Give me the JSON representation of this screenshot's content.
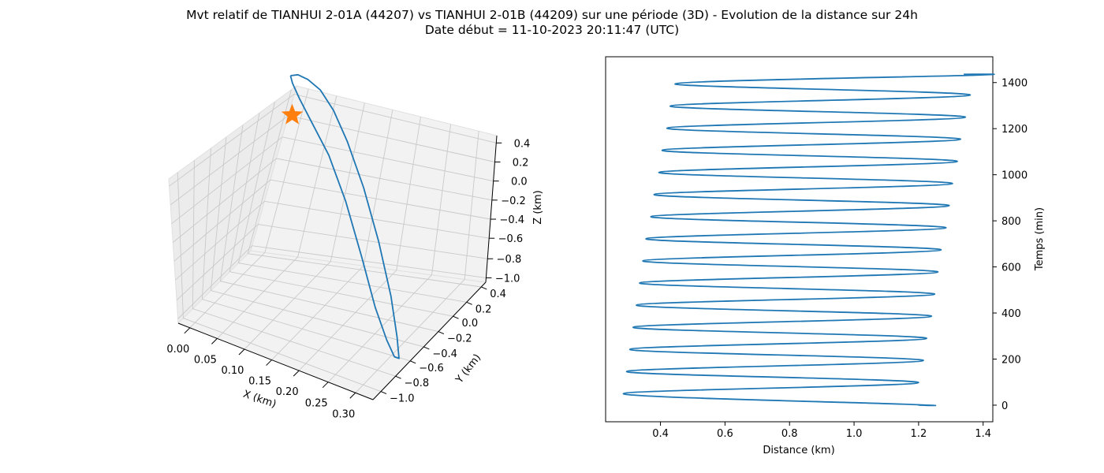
{
  "title_line1": "Mvt relatif de TIANHUI 2-01A (44207) vs TIANHUI 2-01B (44209) sur une période (3D) - Evolution de la distance sur 24h",
  "title_line2": "Date début = 11-10-2023 20:11:47 (UTC)",
  "colors": {
    "series": "#1f77b4",
    "marker": "#ff7f0e"
  },
  "chart_data": [
    {
      "type": "line3d",
      "xlabel": "X (km)",
      "ylabel": "Y (km)",
      "zlabel": "Z (km)",
      "x_ticks": [
        "0.00",
        "0.05",
        "0.10",
        "0.15",
        "0.20",
        "0.25",
        "0.30"
      ],
      "y_ticks": [
        "−1.0",
        "−0.8",
        "−0.6",
        "−0.4",
        "−0.2",
        "0.0",
        "0.2",
        "0.4"
      ],
      "z_ticks": [
        "−1.0",
        "−0.8",
        "−0.6",
        "−0.4",
        "−0.2",
        "0.0",
        "0.2",
        "0.4"
      ],
      "xlim": [
        -0.02,
        0.3
      ],
      "ylim": [
        -1.1,
        0.5
      ],
      "zlim": [
        -1.0,
        0.5
      ],
      "grid": true,
      "marker": {
        "shape": "star",
        "x": 0.02,
        "y": 0.28,
        "z": 0.21
      },
      "trajectory": [
        {
          "x": 0.0,
          "y": 0.45,
          "z": 0.44
        },
        {
          "x": 0.01,
          "y": 0.47,
          "z": 0.46
        },
        {
          "x": 0.025,
          "y": 0.48,
          "z": 0.44
        },
        {
          "x": 0.045,
          "y": 0.48,
          "z": 0.38
        },
        {
          "x": 0.07,
          "y": 0.44,
          "z": 0.26
        },
        {
          "x": 0.1,
          "y": 0.36,
          "z": 0.07
        },
        {
          "x": 0.14,
          "y": 0.22,
          "z": -0.2
        },
        {
          "x": 0.185,
          "y": 0.02,
          "z": -0.5
        },
        {
          "x": 0.23,
          "y": -0.22,
          "z": -0.77
        },
        {
          "x": 0.265,
          "y": -0.45,
          "z": -0.93
        },
        {
          "x": 0.285,
          "y": -0.6,
          "z": -0.99
        },
        {
          "x": 0.28,
          "y": -0.62,
          "z": -0.97
        },
        {
          "x": 0.26,
          "y": -0.55,
          "z": -0.9
        },
        {
          "x": 0.225,
          "y": -0.4,
          "z": -0.76
        },
        {
          "x": 0.18,
          "y": -0.18,
          "z": -0.52
        },
        {
          "x": 0.13,
          "y": 0.05,
          "z": -0.24
        },
        {
          "x": 0.085,
          "y": 0.22,
          "z": 0.0
        },
        {
          "x": 0.045,
          "y": 0.33,
          "z": 0.17
        },
        {
          "x": 0.02,
          "y": 0.39,
          "z": 0.3
        },
        {
          "x": 0.005,
          "y": 0.43,
          "z": 0.39
        },
        {
          "x": 0.0,
          "y": 0.45,
          "z": 0.44
        }
      ]
    },
    {
      "type": "line",
      "xlabel": "Distance (km)",
      "ylabel": "Temps (min)",
      "x_ticks": [
        0.4,
        0.6,
        0.8,
        1.0,
        1.2,
        1.4
      ],
      "y_ticks": [
        0,
        200,
        400,
        600,
        800,
        1000,
        1200,
        1400
      ],
      "xlim": [
        0.23,
        1.43
      ],
      "ylim": [
        -72,
        1512
      ],
      "grid": false,
      "series": [
        {
          "points": [
            {
              "x": 1.2,
              "y": 0
            },
            {
              "x": 1.18,
              "y": 3
            },
            {
              "x": 0.285,
              "y": 50
            },
            {
              "x": 1.2,
              "y": 98
            },
            {
              "x": 0.295,
              "y": 146
            },
            {
              "x": 1.215,
              "y": 194
            },
            {
              "x": 0.305,
              "y": 242
            },
            {
              "x": 1.225,
              "y": 290
            },
            {
              "x": 0.315,
              "y": 338
            },
            {
              "x": 1.24,
              "y": 386
            },
            {
              "x": 0.325,
              "y": 434
            },
            {
              "x": 1.25,
              "y": 482
            },
            {
              "x": 0.335,
              "y": 530
            },
            {
              "x": 1.26,
              "y": 578
            },
            {
              "x": 0.345,
              "y": 626
            },
            {
              "x": 1.27,
              "y": 674
            },
            {
              "x": 0.355,
              "y": 722
            },
            {
              "x": 1.285,
              "y": 770
            },
            {
              "x": 0.37,
              "y": 818
            },
            {
              "x": 1.295,
              "y": 866
            },
            {
              "x": 0.38,
              "y": 914
            },
            {
              "x": 1.305,
              "y": 962
            },
            {
              "x": 0.395,
              "y": 1010
            },
            {
              "x": 1.32,
              "y": 1058
            },
            {
              "x": 0.405,
              "y": 1106
            },
            {
              "x": 1.33,
              "y": 1154
            },
            {
              "x": 0.42,
              "y": 1202
            },
            {
              "x": 1.345,
              "y": 1250
            },
            {
              "x": 0.43,
              "y": 1298
            },
            {
              "x": 1.36,
              "y": 1346
            },
            {
              "x": 0.445,
              "y": 1394
            },
            {
              "x": 1.375,
              "y": 1432
            },
            {
              "x": 1.34,
              "y": 1436
            }
          ]
        }
      ]
    }
  ]
}
